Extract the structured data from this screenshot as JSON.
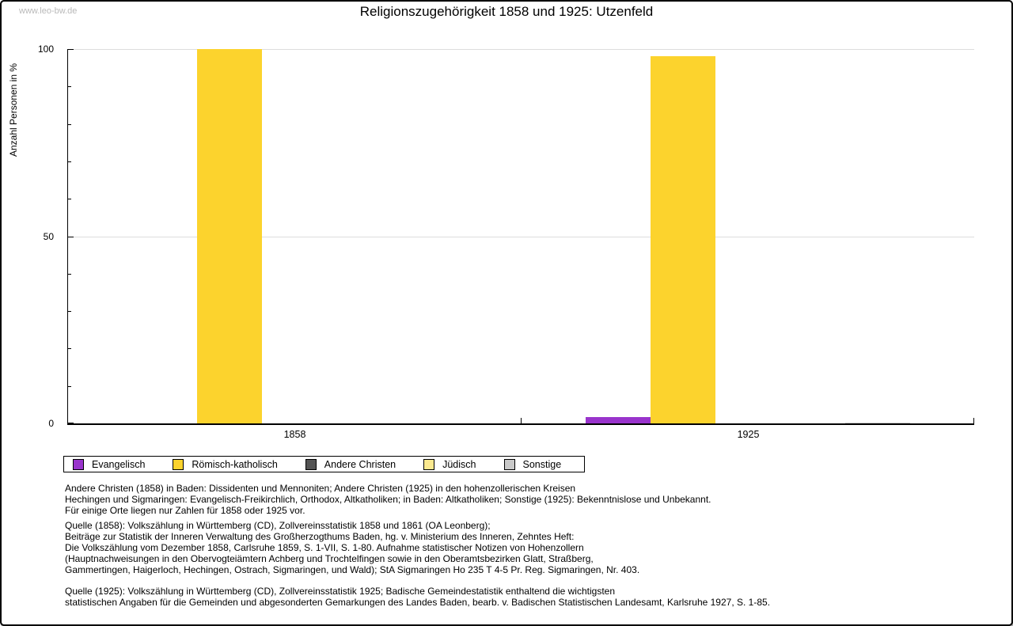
{
  "watermark": "www.leo-bw.de",
  "chart_data": {
    "type": "bar",
    "title": "Religionszugehörigkeit 1858 und 1925: Utzenfeld",
    "ylabel": "Anzahl Personen in %",
    "xlabel": "",
    "categories": [
      "1858",
      "1925"
    ],
    "series": [
      {
        "name": "Evangelisch",
        "color": "#9934CC",
        "values": [
          0,
          1.8
        ]
      },
      {
        "name": "Römisch-katholisch",
        "color": "#FCD32D",
        "values": [
          100,
          98
        ]
      },
      {
        "name": "Andere Christen",
        "color": "#545454",
        "values": [
          0,
          0
        ]
      },
      {
        "name": "Jüdisch",
        "color": "#FBE98F",
        "values": [
          0,
          0
        ]
      },
      {
        "name": "Sonstige",
        "color": "#C9C9C9",
        "values": [
          0,
          0.3
        ]
      }
    ],
    "ylim": [
      0,
      100
    ],
    "yticks": [
      0,
      50,
      100
    ],
    "minor_tick_step": 10,
    "grid": true,
    "gridline_color": "#dddddd",
    "legend_position": "bottom"
  },
  "footnotes": {
    "note": "Andere Christen (1858) in Baden: Dissidenten und Mennoniten; Andere Christen (1925) in den hohenzollerischen Kreisen\nHechingen und Sigmaringen: Evangelisch-Freikirchlich, Orthodox, Altkatholiken; in Baden: Altkatholiken; Sonstige (1925): Bekenntnislose und Unbekannt.\nFür einige Orte liegen nur Zahlen für 1858 oder 1925 vor.",
    "source_1858": "Quelle (1858): Volkszählung in Württemberg (CD), Zollvereinsstatistik 1858 und 1861 (OA Leonberg);\nBeiträge zur Statistik der Inneren Verwaltung des Großherzogthums Baden, hg. v. Ministerium des Inneren, Zehntes Heft:\nDie Volkszählung vom Dezember 1858, Carlsruhe 1859, S. 1-VII, S. 1-80. Aufnahme statistischer Notizen von Hohenzollern\n(Hauptnachweisungen in den Obervogteiämtern Achberg und Trochtelfingen sowie in den Oberamtsbezirken Glatt, Straßberg,\nGammertingen, Haigerloch, Hechingen, Ostrach, Sigmaringen, und Wald); StA Sigmaringen Ho 235 T 4-5 Pr. Reg. Sigmaringen, Nr. 403.",
    "source_1925": "Quelle (1925): Volkszählung in Württemberg (CD), Zollvereinsstatistik 1925; Badische Gemeindestatistik enthaltend die wichtigsten\nstatistischen Angaben für die Gemeinden und abgesonderten Gemarkungen des Landes Baden, bearb. v. Badischen Statistischen Landesamt, Karlsruhe 1927, S. 1-85."
  }
}
